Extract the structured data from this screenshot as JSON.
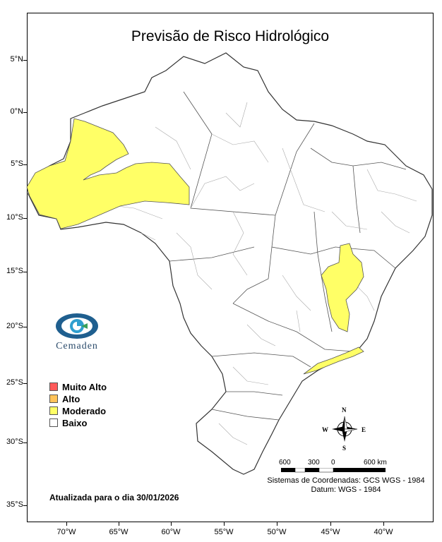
{
  "title": "Previsão de Risco Hidrológico",
  "lat_labels": [
    "5°N",
    "0°N",
    "5°S",
    "10°S",
    "15°S",
    "20°S",
    "25°S",
    "30°S",
    "35°S"
  ],
  "lon_labels": [
    "70°W",
    "65°W",
    "60°W",
    "55°W",
    "50°W",
    "45°W",
    "40°W"
  ],
  "legend": [
    {
      "label": "Muito Alto",
      "color": "#ff5a5a"
    },
    {
      "label": "Alto",
      "color": "#ffc35a"
    },
    {
      "label": "Moderado",
      "color": "#ffff66"
    },
    {
      "label": "Baixo",
      "color": "#ffffff"
    }
  ],
  "logo_text": "Cemaden",
  "updated": "Atualizada para o dia 30/01/2026",
  "scale": {
    "labels": [
      "600",
      "300",
      "0",
      "600 km"
    ]
  },
  "compass": {
    "n": "N",
    "s": "S",
    "e": "E",
    "w": "W"
  },
  "crs_line1": "Sistemas de Coordenadas: GCS WGS - 1984",
  "crs_line2": "Datum: WGS - 1984",
  "colors": {
    "moderate": "#ffff66",
    "border": "#555555",
    "internal": "#aaaaaa"
  }
}
